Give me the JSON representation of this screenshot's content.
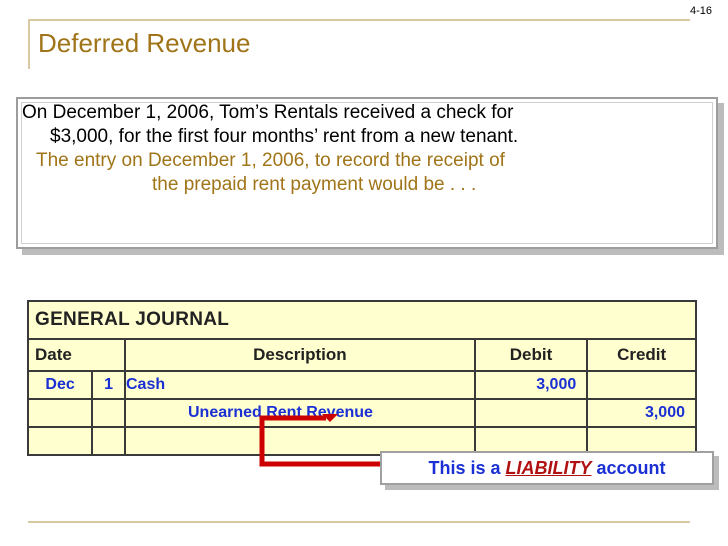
{
  "slide": {
    "number": "4-16",
    "title": "Deferred Revenue"
  },
  "body": {
    "line1": "On December 1, 2006, Tom’s Rentals received a check for",
    "line2": "$3,000, for the first four months’ rent from a new tenant.",
    "line3": "The entry on December 1, 2006, to record the receipt of",
    "line4": "the prepaid rent payment would be . . ."
  },
  "journal": {
    "title": "GENERAL JOURNAL",
    "headers": {
      "date": "Date",
      "description": "Description",
      "debit": "Debit",
      "credit": "Credit"
    },
    "rows": [
      {
        "month": "Dec",
        "day": "1",
        "description": "Cash",
        "debit": "3,000",
        "credit": ""
      },
      {
        "month": "",
        "day": "",
        "description": "Unearned Rent Revenue",
        "debit": "",
        "credit": "3,000"
      },
      {
        "month": "",
        "day": "",
        "description": "",
        "debit": "",
        "credit": ""
      }
    ]
  },
  "callout": {
    "prefix": "This is a",
    "emphasis": "LIABILITY",
    "suffix": "account"
  },
  "colors": {
    "accent_gold": "#a07418",
    "journal_blue": "#1a2fd4",
    "arrow_red": "#cc0000",
    "journal_bg": "#ffffcf"
  }
}
